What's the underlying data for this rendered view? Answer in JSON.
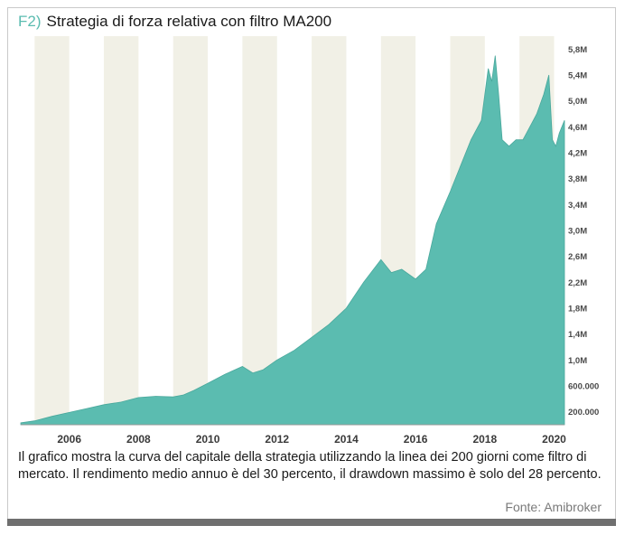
{
  "header": {
    "tag": "F2)",
    "title": "Strategia di forza relativa con filtro MA200"
  },
  "caption": "Il grafico mostra la curva del capitale della strategia utilizzando la linea dei 200 giorni come filtro di mercato. Il rendimento medio annuo è del 30 percento, il drawdown massimo è solo del 28 percento.",
  "source": "Fonte: Amibroker",
  "colors": {
    "area_fill": "#5bbcb0",
    "band_fill": "#f1f0e6",
    "tag": "#5bbcb0"
  },
  "chart_data": {
    "type": "area",
    "x_tick_labels": [
      "2006",
      "2008",
      "2010",
      "2012",
      "2014",
      "2016",
      "2018",
      "2020"
    ],
    "y_tick_labels": [
      "200.000",
      "600.000",
      "1,0M",
      "1,4M",
      "1,8M",
      "2,2M",
      "2,6M",
      "3,0M",
      "3,4M",
      "3,8M",
      "4,2M",
      "4,6M",
      "5,0M",
      "5,4M",
      "5,8M"
    ],
    "y_tick_values": [
      200000,
      600000,
      1000000,
      1400000,
      1800000,
      2200000,
      2600000,
      3000000,
      3400000,
      3800000,
      4200000,
      4600000,
      5000000,
      5400000,
      5800000
    ],
    "xlim": [
      2004.6,
      2020.3
    ],
    "ylim": [
      0,
      6000000
    ],
    "y_axis_side": "right",
    "shaded_years": [
      2005,
      2007,
      2009,
      2011,
      2013,
      2015,
      2017,
      2019
    ],
    "grid": false,
    "series": [
      {
        "x": [
          2004.6,
          2005.0,
          2005.5,
          2006.0,
          2006.5,
          2007.0,
          2007.5,
          2008.0,
          2008.5,
          2009.0,
          2009.3,
          2009.6,
          2010.0,
          2010.5,
          2011.0,
          2011.3,
          2011.6,
          2012.0,
          2012.5,
          2013.0,
          2013.5,
          2014.0,
          2014.5,
          2015.0,
          2015.3,
          2015.6,
          2016.0,
          2016.3,
          2016.6,
          2017.0,
          2017.3,
          2017.6,
          2017.9,
          2018.0,
          2018.1,
          2018.2,
          2018.3,
          2018.4,
          2018.5,
          2018.7,
          2018.9,
          2019.1,
          2019.3,
          2019.5,
          2019.7,
          2019.85,
          2019.95,
          2020.05,
          2020.15,
          2020.3
        ],
        "y": [
          30000,
          60000,
          130000,
          190000,
          250000,
          310000,
          350000,
          420000,
          440000,
          430000,
          460000,
          530000,
          640000,
          780000,
          900000,
          800000,
          850000,
          1000000,
          1150000,
          1350000,
          1550000,
          1800000,
          2200000,
          2550000,
          2350000,
          2400000,
          2250000,
          2400000,
          3100000,
          3600000,
          4000000,
          4400000,
          4700000,
          5100000,
          5500000,
          5300000,
          5700000,
          5100000,
          4400000,
          4300000,
          4400000,
          4400000,
          4600000,
          4800000,
          5100000,
          5400000,
          4400000,
          4300000,
          4500000,
          4700000
        ]
      }
    ]
  }
}
